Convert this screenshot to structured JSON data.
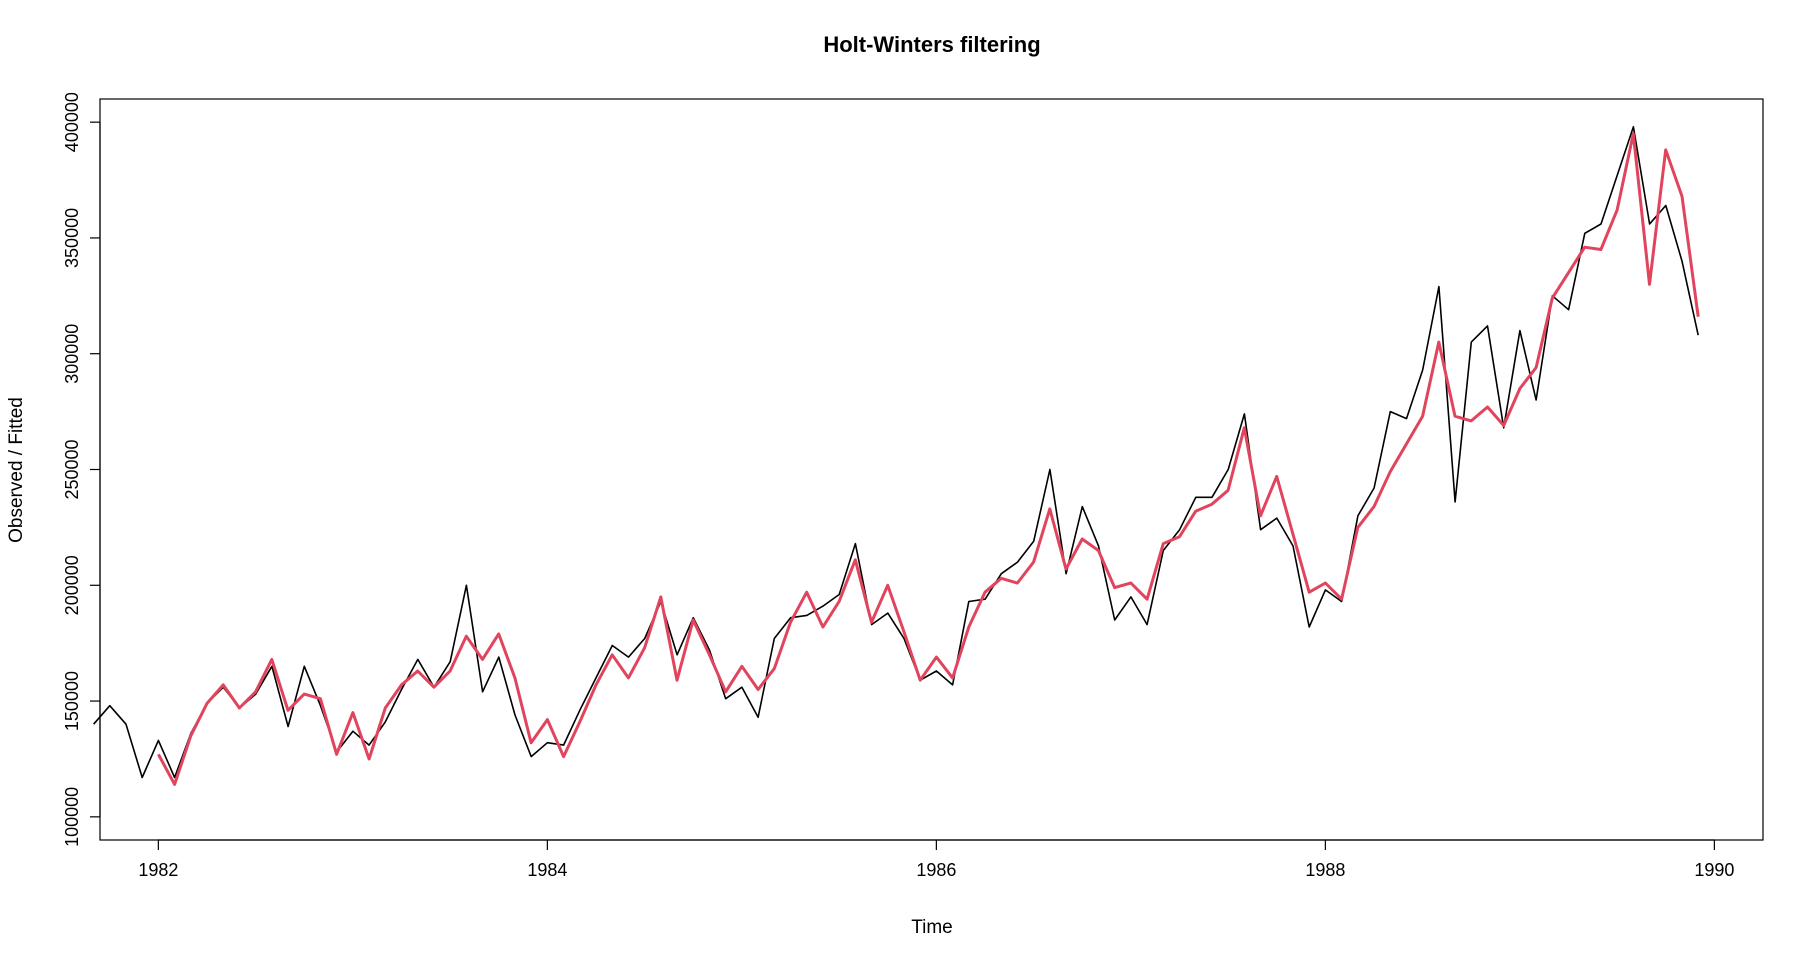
{
  "chart_data": {
    "type": "line",
    "title": "Holt-Winters filtering",
    "xlabel": "Time",
    "ylabel": "Observed / Fitted",
    "xlim": [
      1981.7,
      1990.25
    ],
    "ylim": [
      90000,
      410000
    ],
    "x_ticks": [
      1982,
      1984,
      1986,
      1988,
      1990
    ],
    "x_tick_labels": [
      "1982",
      "1984",
      "1986",
      "1988",
      "1990"
    ],
    "y_ticks": [
      100000,
      150000,
      200000,
      250000,
      300000,
      350000,
      400000
    ],
    "y_tick_labels": [
      "100000",
      "150000",
      "200000",
      "250000",
      "300000",
      "350000",
      "400000"
    ],
    "grid": false,
    "series": [
      {
        "color": "#000000",
        "start": 1981.667,
        "frequency": 12,
        "values": [
          140000,
          148000,
          140000,
          117000,
          133000,
          117000,
          136000,
          149000,
          156000,
          147000,
          153000,
          165000,
          139000,
          165000,
          148000,
          128000,
          137000,
          131000,
          141000,
          155000,
          168000,
          156000,
          167000,
          200000,
          154000,
          169000,
          144000,
          126000,
          132000,
          131000,
          146000,
          160000,
          174000,
          169000,
          177000,
          193000,
          170000,
          186000,
          172000,
          151000,
          156000,
          143000,
          177000,
          186000,
          187000,
          191000,
          196000,
          218000,
          183000,
          188000,
          177000,
          159000,
          163000,
          157000,
          193000,
          194000,
          205000,
          210000,
          219000,
          250000,
          205000,
          234000,
          217000,
          185000,
          195000,
          183000,
          215000,
          224000,
          238000,
          238000,
          250000,
          274000,
          224000,
          229000,
          217000,
          182000,
          198000,
          193000,
          230000,
          242000,
          275000,
          272000,
          293000,
          329000,
          236000,
          305000,
          312000,
          268000,
          310000,
          280000,
          325000,
          319000,
          352000,
          356000,
          377000,
          398000,
          356000,
          364000,
          340000,
          308000
        ]
      },
      {
        "color": "#e1455e",
        "start": 1982.0,
        "frequency": 12,
        "values": [
          127000,
          114000,
          135000,
          149000,
          157000,
          147000,
          154000,
          168000,
          146000,
          153000,
          151000,
          127000,
          145000,
          125000,
          147000,
          157000,
          163000,
          156000,
          163000,
          178000,
          168000,
          179000,
          160000,
          132000,
          142000,
          126000,
          141000,
          157000,
          170000,
          160000,
          173000,
          195000,
          159000,
          185000,
          170000,
          154000,
          165000,
          155000,
          164000,
          184000,
          197000,
          182000,
          193000,
          211000,
          184000,
          200000,
          180000,
          159000,
          169000,
          160000,
          182000,
          197000,
          203000,
          201000,
          210000,
          233000,
          207000,
          220000,
          215000,
          199000,
          201000,
          194000,
          218000,
          221000,
          232000,
          235000,
          241000,
          268000,
          230000,
          247000,
          222000,
          197000,
          201000,
          194000,
          225000,
          234000,
          249000,
          261000,
          273000,
          305000,
          273000,
          271000,
          277000,
          269000,
          285000,
          294000,
          324000,
          335000,
          346000,
          345000,
          362000,
          395000,
          330000,
          388000,
          368000,
          316000
        ]
      }
    ]
  }
}
